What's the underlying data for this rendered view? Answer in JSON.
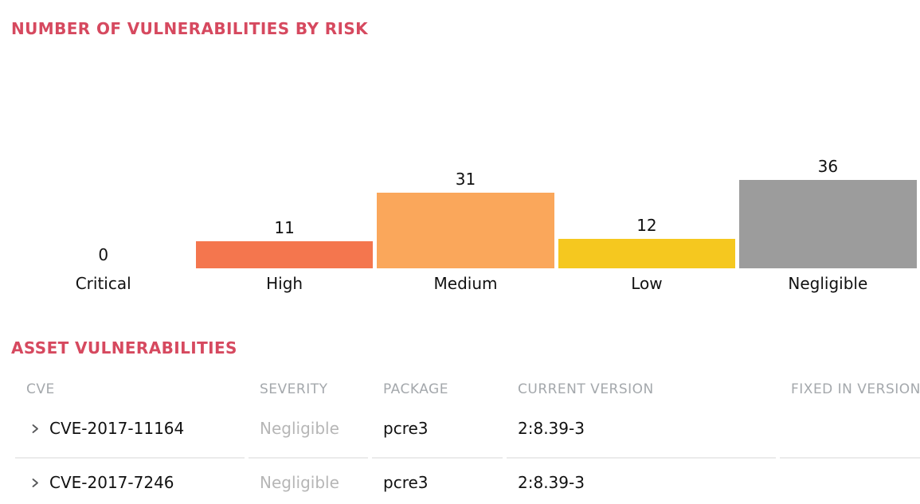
{
  "chart_section": {
    "title": "NUMBER OF VULNERABILITIES BY RISK"
  },
  "chart_data": {
    "type": "bar",
    "title": "NUMBER OF VULNERABILITIES BY RISK",
    "categories": [
      "Critical",
      "High",
      "Medium",
      "Low",
      "Negligible"
    ],
    "values": [
      0,
      11,
      31,
      12,
      36
    ],
    "bar_colors": [
      null,
      "#f4764e",
      "#faa75b",
      "#f5c81f",
      "#9c9c9c"
    ],
    "value_labels_shown": true,
    "legend": "none",
    "axes": "no visible axis lines; value labels above bars, category labels below"
  },
  "table_section": {
    "title": "ASSET VULNERABILITIES"
  },
  "table": {
    "columns": [
      "CVE",
      "SEVERITY",
      "PACKAGE",
      "CURRENT VERSION",
      "FIXED IN VERSION"
    ],
    "rows": [
      {
        "cve": "CVE-2017-11164",
        "severity": "Negligible",
        "package": "pcre3",
        "current_version": "2:8.39-3",
        "fixed_in_version": ""
      },
      {
        "cve": "CVE-2017-7246",
        "severity": "Negligible",
        "package": "pcre3",
        "current_version": "2:8.39-3",
        "fixed_in_version": ""
      }
    ],
    "row_expander_icon": "chevron-right-icon"
  },
  "colors": {
    "section_title": "#d6495f",
    "table_header_text": "#a4a8ac",
    "severity_negligible_text": "#b6b6b6",
    "row_divider": "#ebebeb",
    "body_text": "#111111",
    "chevron": "#57585a"
  }
}
